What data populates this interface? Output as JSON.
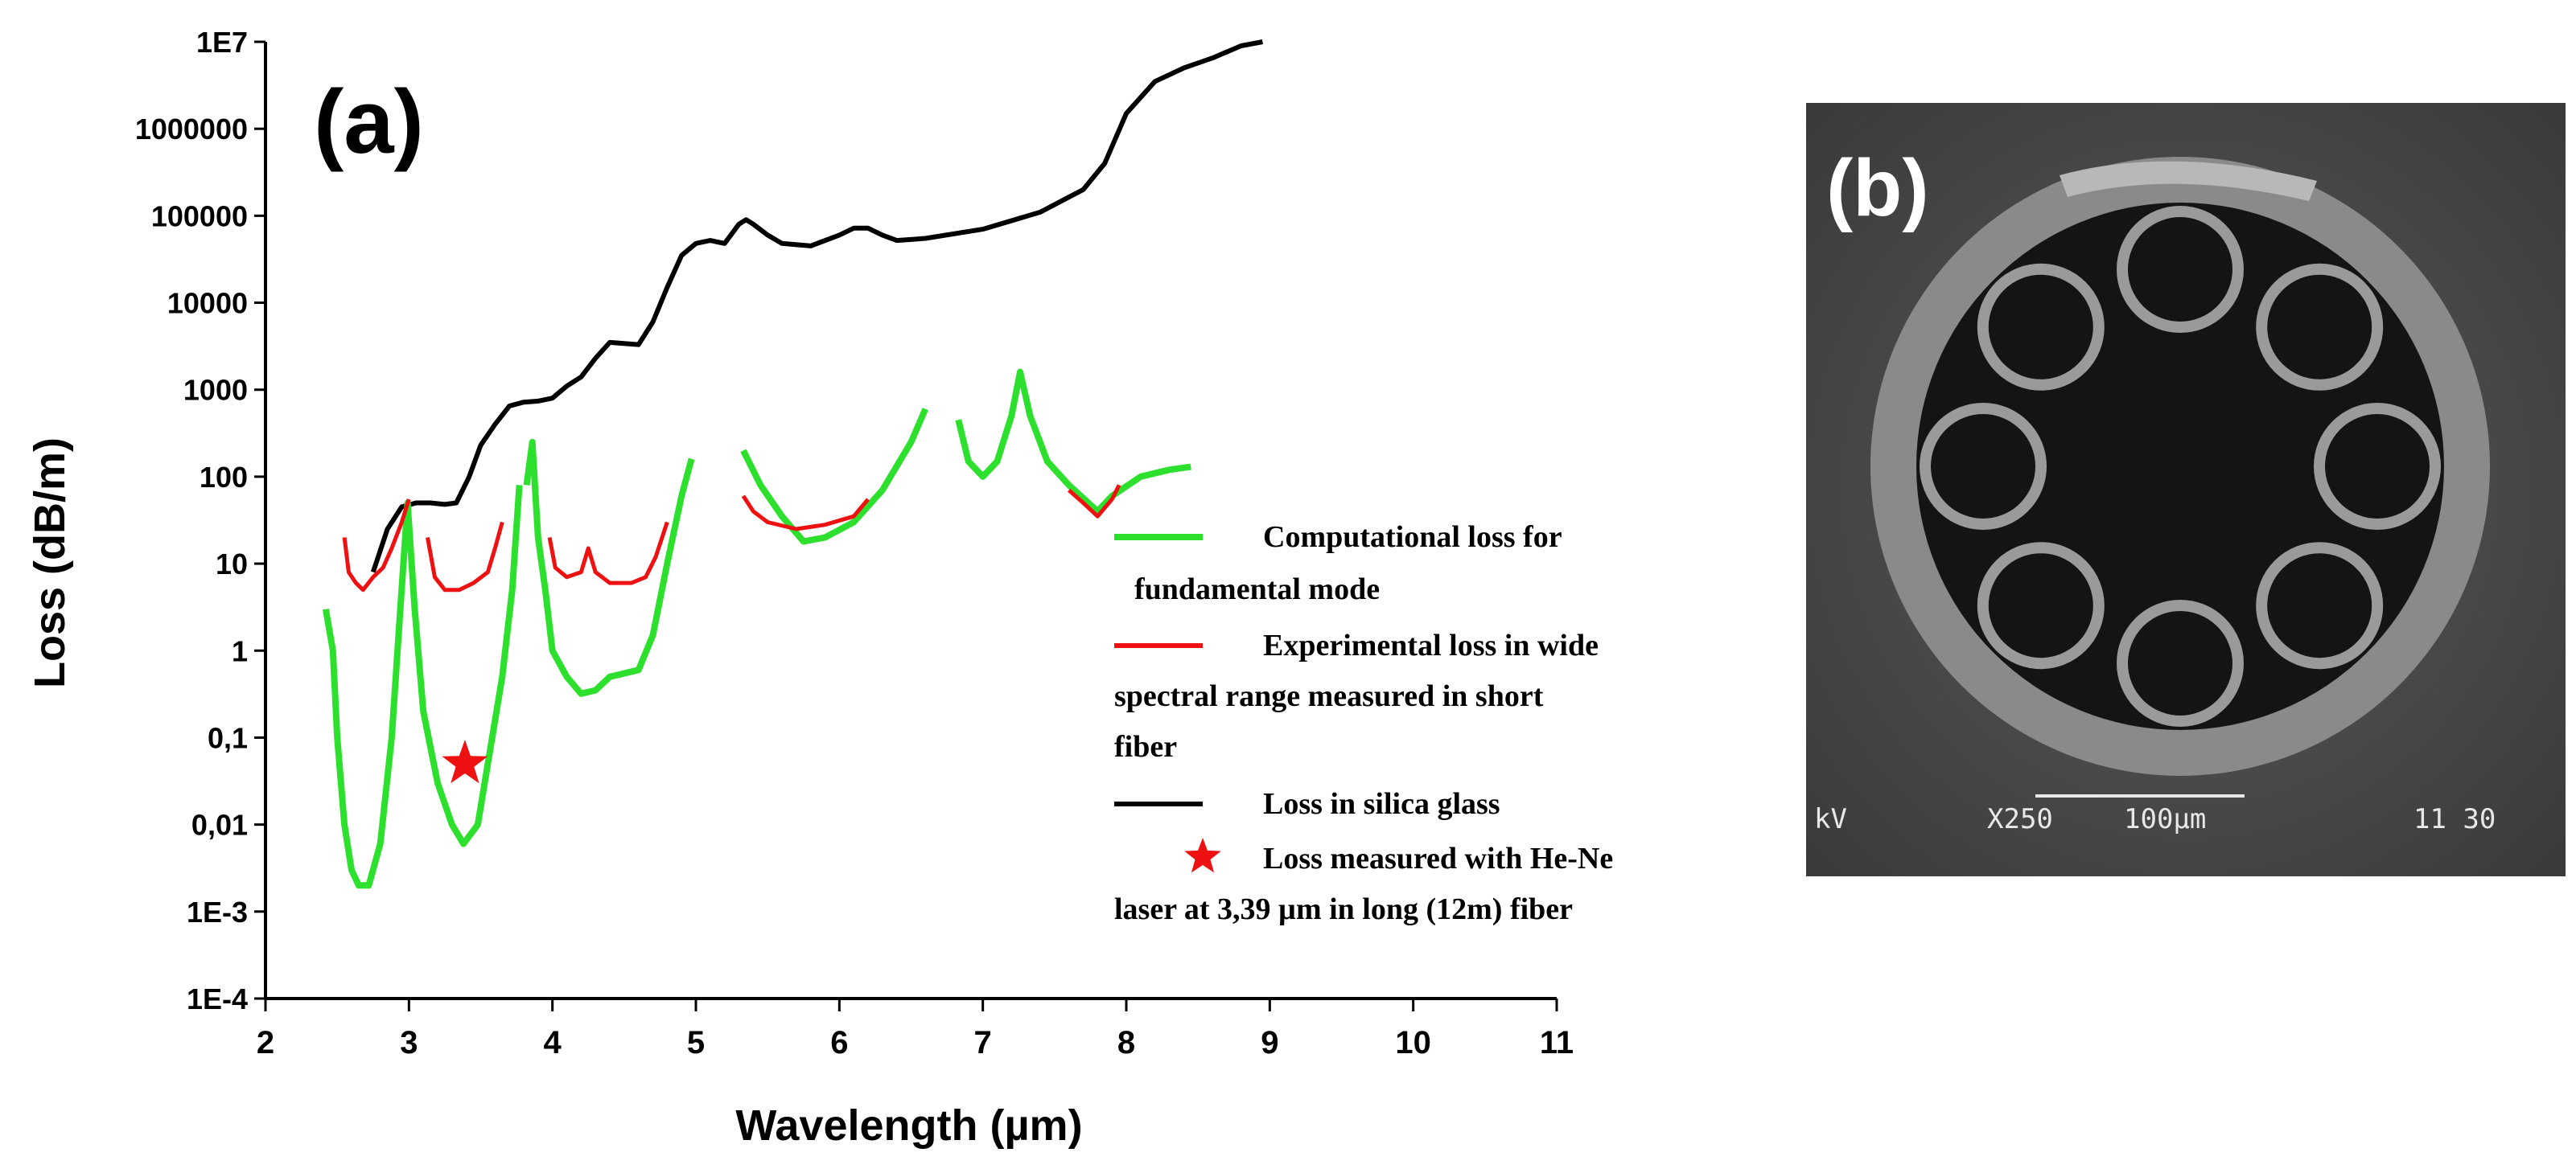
{
  "chart_data": [
    {
      "panel": "(a)",
      "type": "line",
      "title": "",
      "xlabel": "Wavelength (µm)",
      "ylabel": "Loss (dB/m)",
      "xscale": "linear",
      "yscale": "log",
      "xlim": [
        2,
        11
      ],
      "ylim": [
        0.0001,
        10000000
      ],
      "xticks": [
        2,
        3,
        4,
        5,
        6,
        7,
        8,
        9,
        10,
        11
      ],
      "xtick_labels": [
        "2",
        "3",
        "4",
        "5",
        "6",
        "7",
        "8",
        "9",
        "10",
        "11"
      ],
      "yticks": [
        0.0001,
        0.001,
        0.01,
        0.1,
        1,
        10,
        100,
        1000,
        10000,
        100000,
        1000000,
        10000000
      ],
      "ytick_labels": [
        "1E-4",
        "1E-3",
        "0,01",
        "0,1",
        "1",
        "10",
        "100",
        "1000",
        "10000",
        "100000",
        "1000000",
        "1E7"
      ],
      "grid": false,
      "legend_position": "right",
      "series": [
        {
          "name": "Loss in silica glass",
          "color": "#000000",
          "segments": [
            [
              [
                2.75,
                8
              ],
              [
                2.85,
                25
              ],
              [
                2.95,
                45
              ],
              [
                3.05,
                50
              ],
              [
                3.15,
                50
              ],
              [
                3.25,
                48
              ],
              [
                3.33,
                50
              ],
              [
                3.42,
                100
              ],
              [
                3.5,
                230
              ],
              [
                3.6,
                400
              ],
              [
                3.7,
                650
              ],
              [
                3.8,
                720
              ],
              [
                3.9,
                740
              ],
              [
                4.0,
                800
              ],
              [
                4.1,
                1100
              ],
              [
                4.2,
                1400
              ],
              [
                4.3,
                2300
              ],
              [
                4.4,
                3500
              ],
              [
                4.5,
                3400
              ],
              [
                4.6,
                3300
              ],
              [
                4.7,
                6000
              ],
              [
                4.8,
                15000
              ],
              [
                4.9,
                35000
              ],
              [
                5.0,
                48000
              ],
              [
                5.1,
                52000
              ],
              [
                5.2,
                48000
              ],
              [
                5.3,
                80000
              ],
              [
                5.35,
                90000
              ],
              [
                5.4,
                80000
              ],
              [
                5.5,
                60000
              ],
              [
                5.6,
                48000
              ],
              [
                5.8,
                45000
              ],
              [
                6.0,
                60000
              ],
              [
                6.1,
                72000
              ],
              [
                6.2,
                72000
              ],
              [
                6.3,
                60000
              ],
              [
                6.4,
                52000
              ],
              [
                6.6,
                55000
              ],
              [
                7.0,
                70000
              ],
              [
                7.4,
                110000
              ],
              [
                7.7,
                200000
              ],
              [
                7.85,
                400000
              ],
              [
                8.0,
                1500000
              ],
              [
                8.2,
                3500000
              ],
              [
                8.4,
                5000000
              ],
              [
                8.6,
                6500000
              ],
              [
                8.8,
                9000000
              ],
              [
                8.95,
                10000000
              ]
            ]
          ]
        },
        {
          "name": "Computational loss for fundamental mode",
          "color": "#2ee02e",
          "segments": [
            [
              [
                2.42,
                3
              ],
              [
                2.47,
                1
              ],
              [
                2.5,
                0.1
              ],
              [
                2.55,
                0.01
              ],
              [
                2.6,
                0.003
              ],
              [
                2.65,
                0.002
              ],
              [
                2.72,
                0.002
              ],
              [
                2.8,
                0.006
              ],
              [
                2.88,
                0.1
              ],
              [
                2.94,
                3
              ],
              [
                2.99,
                50
              ],
              [
                3.04,
                3
              ],
              [
                3.1,
                0.2
              ],
              [
                3.2,
                0.03
              ],
              [
                3.3,
                0.01
              ],
              [
                3.38,
                0.006
              ],
              [
                3.48,
                0.01
              ],
              [
                3.55,
                0.05
              ],
              [
                3.65,
                0.5
              ],
              [
                3.72,
                5
              ],
              [
                3.77,
                80
              ]
            ],
            [
              [
                3.82,
                80
              ],
              [
                3.86,
                250
              ],
              [
                3.9,
                20
              ],
              [
                3.95,
                5
              ],
              [
                4.0,
                1
              ],
              [
                4.1,
                0.5
              ],
              [
                4.2,
                0.32
              ],
              [
                4.3,
                0.35
              ],
              [
                4.4,
                0.5
              ],
              [
                4.6,
                0.6
              ],
              [
                4.7,
                1.5
              ],
              [
                4.8,
                10
              ],
              [
                4.9,
                60
              ],
              [
                4.97,
                160
              ]
            ],
            [
              [
                5.33,
                200
              ],
              [
                5.45,
                80
              ],
              [
                5.6,
                35
              ],
              [
                5.75,
                18
              ],
              [
                5.9,
                20
              ],
              [
                6.1,
                30
              ],
              [
                6.3,
                70
              ],
              [
                6.5,
                250
              ],
              [
                6.6,
                600
              ]
            ],
            [
              [
                6.83,
                450
              ],
              [
                6.9,
                150
              ],
              [
                7.0,
                100
              ],
              [
                7.1,
                150
              ],
              [
                7.2,
                500
              ],
              [
                7.26,
                1600
              ],
              [
                7.33,
                500
              ],
              [
                7.45,
                150
              ],
              [
                7.6,
                80
              ],
              [
                7.8,
                40
              ],
              [
                7.9,
                60
              ],
              [
                8.1,
                100
              ],
              [
                8.3,
                120
              ],
              [
                8.45,
                130
              ]
            ]
          ]
        },
        {
          "name": "Experimental loss in wide spectral range measured in short fiber",
          "color": "#ee1111",
          "segments": [
            [
              [
                2.55,
                20
              ],
              [
                2.58,
                8
              ],
              [
                2.63,
                6
              ],
              [
                2.68,
                5
              ],
              [
                2.75,
                7
              ],
              [
                2.82,
                9
              ],
              [
                2.88,
                15
              ],
              [
                2.95,
                30
              ],
              [
                3.0,
                55
              ]
            ],
            [
              [
                3.13,
                20
              ],
              [
                3.18,
                7
              ],
              [
                3.25,
                5
              ],
              [
                3.35,
                5
              ],
              [
                3.45,
                6
              ],
              [
                3.55,
                8
              ],
              [
                3.6,
                15
              ],
              [
                3.65,
                30
              ]
            ],
            [
              [
                3.98,
                20
              ],
              [
                4.02,
                9
              ],
              [
                4.1,
                7
              ],
              [
                4.2,
                8
              ],
              [
                4.25,
                15
              ],
              [
                4.3,
                8
              ],
              [
                4.4,
                6
              ],
              [
                4.55,
                6
              ],
              [
                4.65,
                7
              ],
              [
                4.72,
                12
              ],
              [
                4.8,
                30
              ]
            ],
            [
              [
                5.33,
                60
              ],
              [
                5.4,
                40
              ],
              [
                5.5,
                30
              ],
              [
                5.7,
                25
              ],
              [
                5.9,
                28
              ],
              [
                6.1,
                35
              ],
              [
                6.2,
                55
              ]
            ],
            [
              [
                7.6,
                70
              ],
              [
                7.7,
                50
              ],
              [
                7.8,
                35
              ],
              [
                7.9,
                55
              ],
              [
                7.95,
                80
              ]
            ]
          ]
        },
        {
          "name": "Loss measured with He-Ne laser at 3,39 µm in long (12m) fiber",
          "color": "#ee1111",
          "marker": "star",
          "points": [
            [
              3.39,
              0.05
            ]
          ]
        }
      ],
      "legend": [
        {
          "marker": "line",
          "color": "#2ee02e",
          "lines": [
            "Computational loss for",
            "fundamental mode"
          ]
        },
        {
          "marker": "line",
          "color": "#ee1111",
          "lines": [
            "Experimental loss in wide",
            "spectral range measured in short",
            "fiber"
          ]
        },
        {
          "marker": "line",
          "color": "#000000",
          "lines": [
            "Loss in silica glass"
          ]
        },
        {
          "marker": "star",
          "color": "#ee1111",
          "lines": [
            "Loss measured with He-Ne",
            "laser at 3,39 µm in long (12m) fiber"
          ]
        }
      ]
    }
  ],
  "panel_b": {
    "label": "(b)",
    "caption_left": "kV",
    "caption_mag": "X250",
    "caption_scale": "100µm",
    "caption_right": "11 30"
  }
}
